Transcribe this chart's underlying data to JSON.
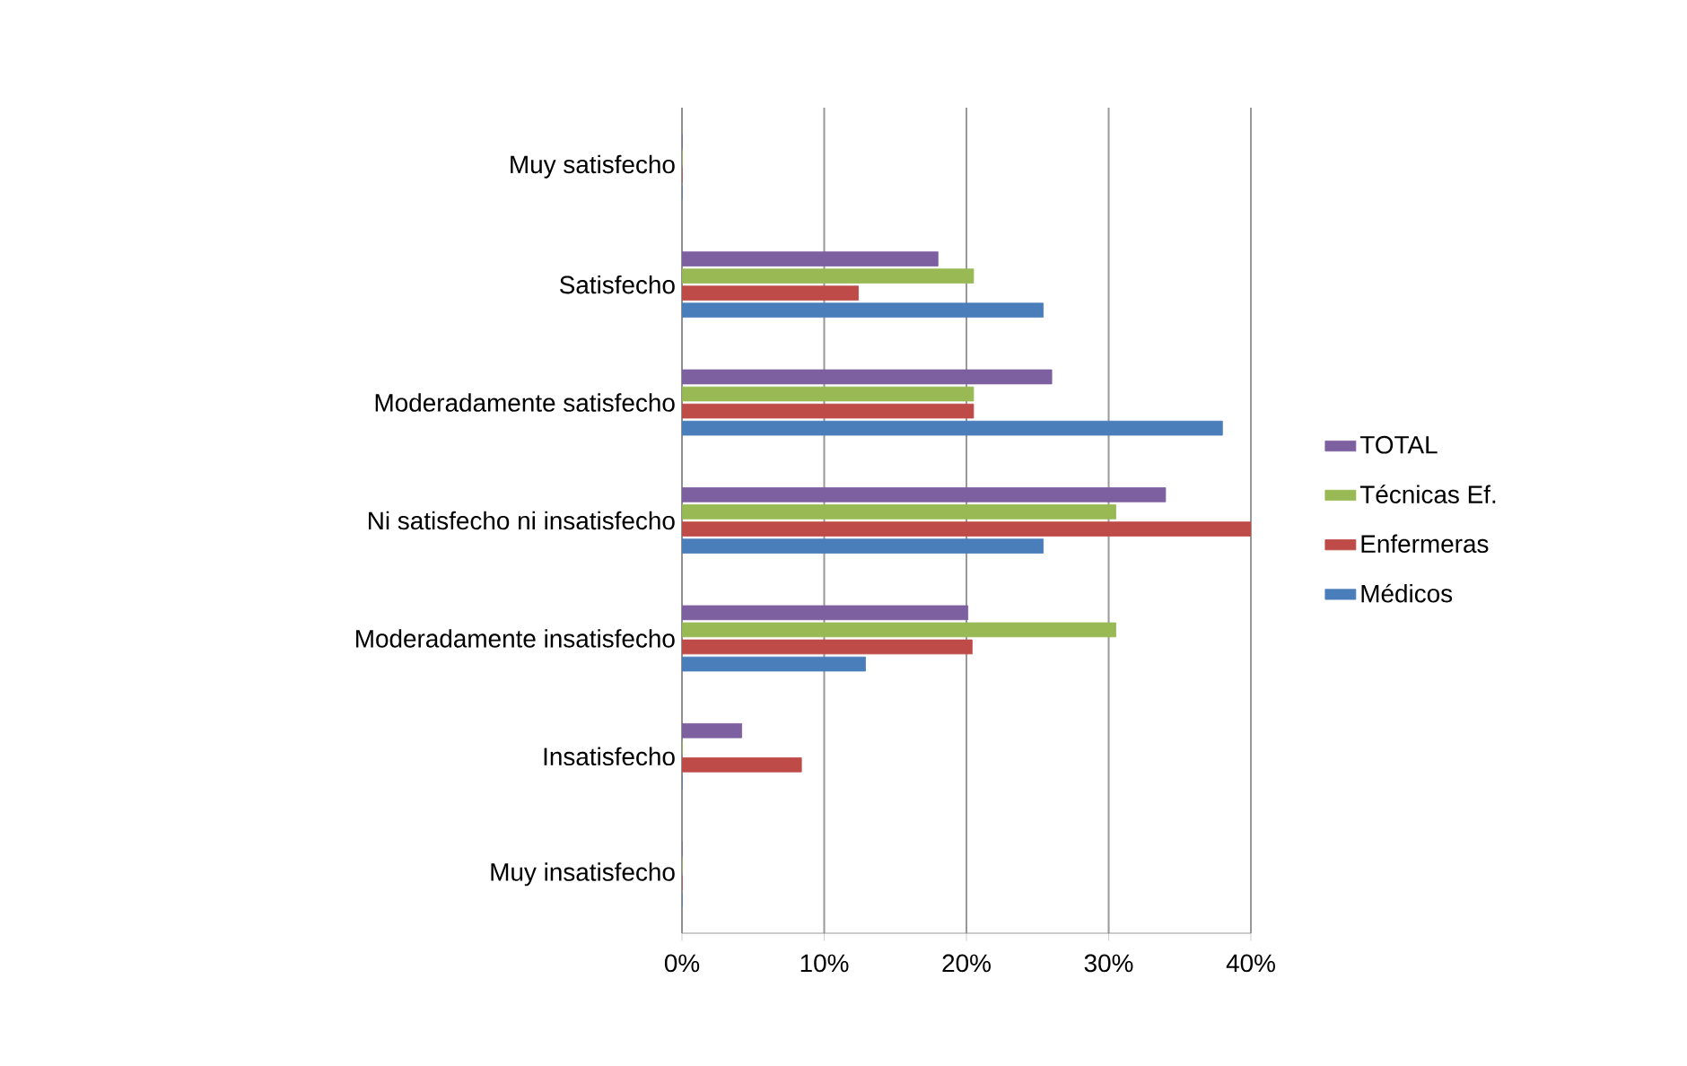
{
  "chart_data": {
    "type": "bar",
    "orientation": "horizontal",
    "categories": [
      "Muy satisfecho",
      "Satisfecho",
      "Moderadamente satisfecho",
      "Ni satisfecho ni insatisfecho",
      "Moderadamente insatisfecho",
      "Insatisfecho",
      "Muy insatisfecho"
    ],
    "series": [
      {
        "name": "Médicos",
        "color": "#4a7ebb",
        "values": [
          0,
          25.4,
          38,
          25.4,
          12.9,
          0,
          0
        ]
      },
      {
        "name": "Enfermeras",
        "color": "#be4b48",
        "values": [
          0,
          12.4,
          20.5,
          40,
          20.4,
          8.4,
          0
        ]
      },
      {
        "name": "Técnicas Ef.",
        "color": "#98b954",
        "values": [
          0,
          20.5,
          20.5,
          30.5,
          30.5,
          0,
          0
        ]
      },
      {
        "name": "TOTAL",
        "color": "#7d60a0",
        "values": [
          0,
          18,
          26,
          34,
          20.1,
          4.2,
          0
        ]
      }
    ],
    "xlim": [
      0,
      40
    ],
    "xticks": [
      {
        "value": 0,
        "label": "0%"
      },
      {
        "value": 10,
        "label": "10%"
      },
      {
        "value": 20,
        "label": "20%"
      },
      {
        "value": 30,
        "label": "30%"
      },
      {
        "value": 40,
        "label": "40%"
      }
    ],
    "grid": "x",
    "legend": "right"
  }
}
